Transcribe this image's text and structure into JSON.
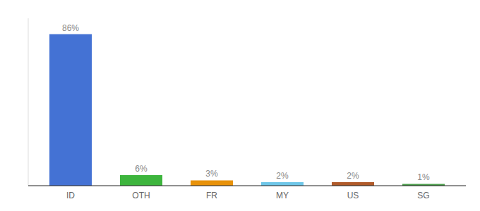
{
  "chart_data": {
    "type": "bar",
    "categories": [
      "ID",
      "OTH",
      "FR",
      "MY",
      "US",
      "SG"
    ],
    "values": [
      86,
      6,
      3,
      2,
      2,
      1
    ],
    "value_labels": [
      "86%",
      "6%",
      "3%",
      "2%",
      "2%",
      "1%"
    ],
    "colors": [
      "#4472d4",
      "#3db53d",
      "#e8920a",
      "#6ec6e8",
      "#b05a2a",
      "#4a9e4a"
    ],
    "ylim": [
      0,
      95
    ],
    "data_labels": true,
    "tick_labels": "x",
    "grid": false
  }
}
